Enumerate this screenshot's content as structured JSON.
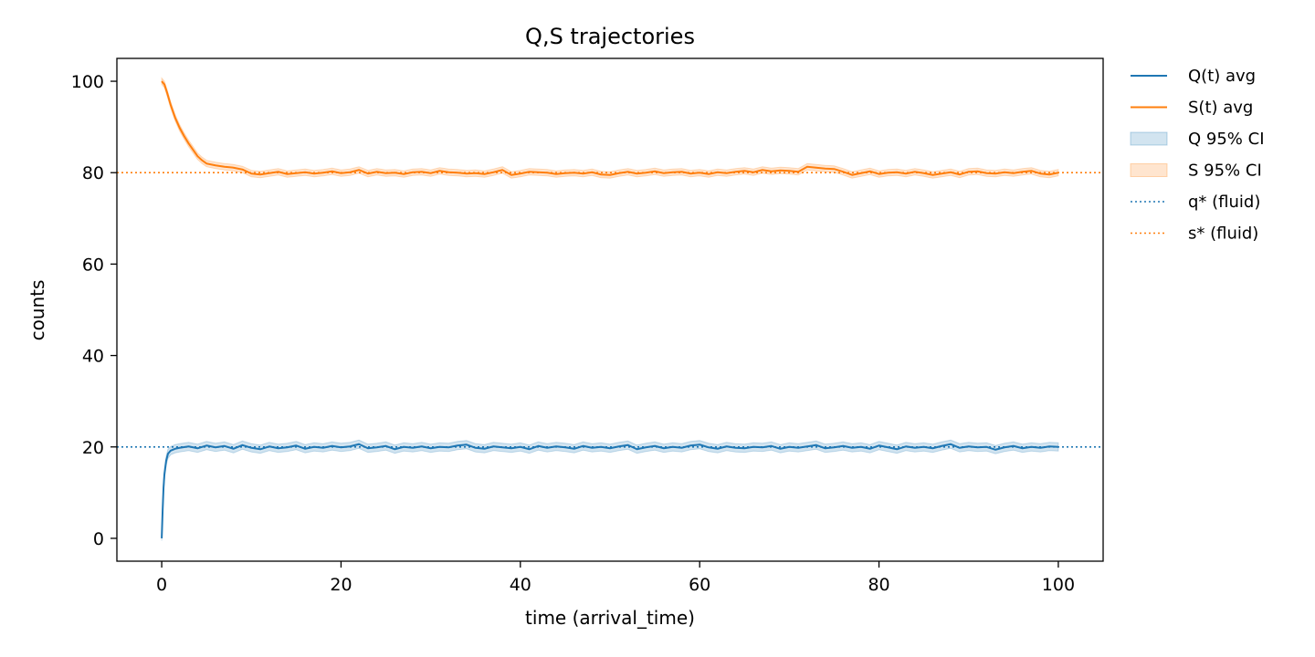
{
  "chart_data": {
    "type": "line",
    "title": "Q,S trajectories",
    "xlabel": "time (arrival_time)",
    "ylabel": "counts",
    "xlim": [
      -5,
      105
    ],
    "ylim": [
      -5,
      105
    ],
    "xticks": [
      0,
      20,
      40,
      60,
      80,
      100
    ],
    "yticks": [
      0,
      20,
      40,
      60,
      80,
      100
    ],
    "xtick_labels": [
      "0",
      "20",
      "40",
      "60",
      "80",
      "100"
    ],
    "ytick_labels": [
      "0",
      "20",
      "40",
      "60",
      "80",
      "100"
    ],
    "grid": false,
    "legend_position": "outside-right-top",
    "series": [
      {
        "name": "Q(t) avg",
        "kind": "line",
        "color": "#1f77b4",
        "x": [
          0,
          0.1,
          0.2,
          0.3,
          0.5,
          0.7,
          1,
          1.5,
          2,
          3,
          4,
          5,
          6,
          7,
          8,
          9,
          10,
          11,
          12,
          13,
          14,
          15,
          16,
          17,
          18,
          19,
          20,
          21,
          22,
          23,
          24,
          25,
          26,
          27,
          28,
          29,
          30,
          31,
          32,
          33,
          34,
          35,
          36,
          37,
          38,
          39,
          40,
          41,
          42,
          43,
          44,
          45,
          46,
          47,
          48,
          49,
          50,
          51,
          52,
          53,
          54,
          55,
          56,
          57,
          58,
          59,
          60,
          61,
          62,
          63,
          64,
          65,
          66,
          67,
          68,
          69,
          70,
          71,
          72,
          73,
          74,
          75,
          76,
          77,
          78,
          79,
          80,
          81,
          82,
          83,
          84,
          85,
          86,
          87,
          88,
          89,
          90,
          91,
          92,
          93,
          94,
          95,
          96,
          97,
          98,
          99,
          100
        ],
        "y": [
          0,
          6,
          11,
          14,
          17,
          18.5,
          19.2,
          19.6,
          19.8,
          20.1,
          19.7,
          20.3,
          19.9,
          20.2,
          19.6,
          20.4,
          19.8,
          19.5,
          20.1,
          19.7,
          19.9,
          20.3,
          19.6,
          20,
          19.8,
          20.2,
          19.9,
          20.1,
          20.6,
          19.7,
          19.9,
          20.2,
          19.5,
          20,
          19.8,
          20.1,
          19.7,
          20,
          19.9,
          20.3,
          20.5,
          19.8,
          19.6,
          20.1,
          19.9,
          19.7,
          20,
          19.5,
          20.2,
          19.8,
          20.1,
          19.9,
          19.6,
          20.2,
          19.8,
          20,
          19.7,
          20.1,
          20.4,
          19.5,
          19.9,
          20.2,
          19.7,
          20,
          19.8,
          20.3,
          20.5,
          19.9,
          19.6,
          20.1,
          19.8,
          19.7,
          20,
          19.9,
          20.2,
          19.6,
          20,
          19.8,
          20.1,
          20.4,
          19.7,
          19.9,
          20.2,
          19.8,
          20,
          19.6,
          20.3,
          19.9,
          19.5,
          20.1,
          19.8,
          20,
          19.7,
          20.2,
          20.6,
          19.8,
          20.1,
          19.9,
          20,
          19.4,
          19.9,
          20.2,
          19.7,
          20,
          19.8,
          20.1,
          20
        ],
        "y_ci_halfwidth": [
          0.5,
          1.2,
          1.2,
          1.1,
          1,
          1,
          0.9,
          0.9,
          0.9,
          0.9,
          0.9,
          0.9,
          0.9,
          0.9,
          0.9,
          0.9,
          0.9,
          0.9,
          0.9,
          0.9,
          0.9,
          0.9,
          0.9,
          0.9,
          0.9,
          0.9,
          0.9,
          0.9,
          0.9,
          0.9,
          0.9,
          0.9,
          0.9,
          0.9,
          0.9,
          0.9,
          0.9,
          0.9,
          0.9,
          0.9,
          0.9,
          0.9,
          0.9,
          0.9,
          0.9,
          0.9,
          0.9,
          0.9,
          0.9,
          0.9,
          0.9,
          0.9,
          0.9,
          0.9,
          0.9,
          0.9,
          0.9,
          0.9,
          0.9,
          0.9,
          0.9,
          0.9,
          0.9,
          0.9,
          0.9,
          0.9,
          0.9,
          0.9,
          0.9,
          0.9,
          0.9,
          0.9,
          0.9,
          0.9,
          0.9,
          0.9,
          0.9,
          0.9,
          0.9,
          0.9,
          0.9,
          0.9,
          0.9,
          0.9,
          0.9,
          0.9,
          0.9,
          0.9,
          0.9,
          0.9,
          0.9,
          0.9,
          0.9,
          0.9,
          0.9,
          0.9,
          0.9,
          0.9,
          0.9,
          0.9,
          0.9,
          0.9,
          0.9,
          0.9,
          0.9,
          0.9,
          0.9
        ]
      },
      {
        "name": "S(t) avg",
        "kind": "line",
        "color": "#ff7f0e",
        "x": [
          0,
          0.3,
          0.6,
          1,
          1.5,
          2,
          2.5,
          3,
          3.5,
          4,
          4.5,
          5,
          6,
          7,
          8,
          9,
          10,
          11,
          12,
          13,
          14,
          15,
          16,
          17,
          18,
          19,
          20,
          21,
          22,
          23,
          24,
          25,
          26,
          27,
          28,
          29,
          30,
          31,
          32,
          33,
          34,
          35,
          36,
          37,
          38,
          39,
          40,
          41,
          42,
          43,
          44,
          45,
          46,
          47,
          48,
          49,
          50,
          51,
          52,
          53,
          54,
          55,
          56,
          57,
          58,
          59,
          60,
          61,
          62,
          63,
          64,
          65,
          66,
          67,
          68,
          69,
          70,
          71,
          72,
          73,
          74,
          75,
          76,
          77,
          78,
          79,
          80,
          81,
          82,
          83,
          84,
          85,
          86,
          87,
          88,
          89,
          90,
          91,
          92,
          93,
          94,
          95,
          96,
          97,
          98,
          99,
          100
        ],
        "y": [
          100,
          99.3,
          97.5,
          94.8,
          92,
          89.8,
          88,
          86.4,
          85,
          83.6,
          82.7,
          82,
          81.6,
          81.3,
          81.1,
          80.7,
          79.8,
          79.6,
          79.9,
          80.2,
          79.7,
          79.9,
          80.1,
          79.8,
          80,
          80.3,
          79.9,
          80.1,
          80.6,
          79.8,
          80.2,
          79.9,
          80,
          79.7,
          80.1,
          80.2,
          79.9,
          80.4,
          80.1,
          80,
          79.8,
          79.9,
          79.7,
          80.1,
          80.6,
          79.5,
          79.8,
          80.2,
          80.1,
          80,
          79.7,
          79.9,
          80,
          79.8,
          80.1,
          79.6,
          79.5,
          79.9,
          80.2,
          79.8,
          80,
          80.3,
          79.9,
          80.1,
          80.2,
          79.8,
          80,
          79.7,
          80.1,
          79.9,
          80.2,
          80.4,
          80.1,
          80.6,
          80.3,
          80.5,
          80.4,
          80.2,
          81.3,
          81.1,
          80.9,
          80.8,
          80.2,
          79.5,
          79.9,
          80.3,
          79.7,
          80,
          80.1,
          79.8,
          80.2,
          79.9,
          79.5,
          79.8,
          80.1,
          79.6,
          80.2,
          80.3,
          79.9,
          79.8,
          80.1,
          79.9,
          80.2,
          80.4,
          79.8,
          79.6,
          80
        ]
      },
      {
        "name": "q* (fluid)",
        "kind": "hline",
        "color": "#1f77b4",
        "y": 20,
        "style": "dotted"
      },
      {
        "name": "s* (fluid)",
        "kind": "hline",
        "color": "#ff7f0e",
        "y": 80,
        "style": "dotted"
      }
    ],
    "bands": [
      {
        "name": "Q 95% CI",
        "of_series": "Q(t) avg",
        "color": "#1f77b4",
        "opacity": 0.2
      },
      {
        "name": "S 95% CI",
        "of_series": "S(t) avg",
        "color": "#ff7f0e",
        "opacity": 0.2
      }
    ],
    "legend": [
      {
        "label": "Q(t) avg",
        "kind": "line",
        "color": "#1f77b4"
      },
      {
        "label": "S(t) avg",
        "kind": "line",
        "color": "#ff7f0e"
      },
      {
        "label": "Q 95% CI",
        "kind": "patch",
        "color": "#1f77b4"
      },
      {
        "label": "S 95% CI",
        "kind": "patch",
        "color": "#ff7f0e"
      },
      {
        "label": "q* (fluid)",
        "kind": "dotted",
        "color": "#1f77b4"
      },
      {
        "label": "s* (fluid)",
        "kind": "dotted",
        "color": "#ff7f0e"
      }
    ]
  }
}
